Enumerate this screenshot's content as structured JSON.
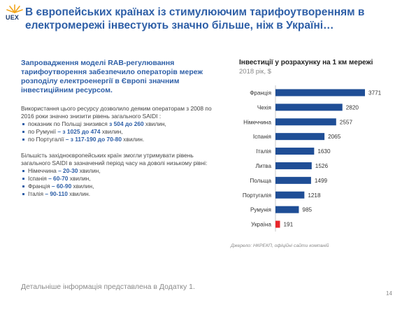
{
  "brand": {
    "logo_text": "UEX"
  },
  "title": "В європейських країнах із стимулюючим тарифоутворенням в електромережі інвестують значно більше, ніж в Україні…",
  "lead": "Запровадження моделі RAB-регулювання тарифоутворення забезпечило операторів мереж розподілу електроенергії в Європі значним інвестиційним ресурсом.",
  "para1": "Використання цього ресурсу дозволило деяким операторам з 2008 по 2016 роки значно знизити рівень загального SAIDI :",
  "list1": [
    {
      "pre": "показник по Польщі знизився ",
      "hl": "з 504 до 260",
      "post": " хвилин,"
    },
    {
      "pre": "по Румунії ",
      "hl": "– з 1025 до 474",
      "post": " хвилин,"
    },
    {
      "pre": "по Португалії ",
      "hl": "– з 117-190 до 70-80",
      "post": " хвилин."
    }
  ],
  "para2": "Більшість західноєвропейських країн змогли утримувати рівень загального SAIDI в зазначений період часу на доволі низькому рівні:",
  "list2": [
    {
      "pre": "Німеччина ",
      "hl": "– 20-30",
      "post": " хвилин,"
    },
    {
      "pre": "Іспанія ",
      "hl": "– 60-70",
      "post": " хвилин,"
    },
    {
      "pre": "Франція ",
      "hl": "– 60-90",
      "post": " хвилин,"
    },
    {
      "pre": "Італія ",
      "hl": "– 90-110",
      "post": " хвилин."
    }
  ],
  "footnote": "Детальніше інформація представлена в Додатку 1.",
  "page_number": "14",
  "source": "Джерело: НКРЕКП, офіційні сайти компаній",
  "colors": {
    "accent": "#2e5fa7",
    "bar": "#1f4e96",
    "highlight_bar": "#e8262b"
  },
  "chart_data": {
    "type": "bar",
    "orientation": "horizontal",
    "title": "Інвестиції у розрахунку на 1 км мережі",
    "subtitle": "2018 рік, $",
    "categories": [
      "Франція",
      "Чехія",
      "Німеччина",
      "Іспанія",
      "Італія",
      "Литва",
      "Польща",
      "Португалія",
      "Румунія",
      "Україна"
    ],
    "values": [
      3771,
      2820,
      2557,
      2065,
      1630,
      1526,
      1499,
      1218,
      985,
      191
    ],
    "highlight": "Україна",
    "data_labels": true,
    "grid": false,
    "legend": "none",
    "xlim": [
      0,
      3771
    ]
  }
}
